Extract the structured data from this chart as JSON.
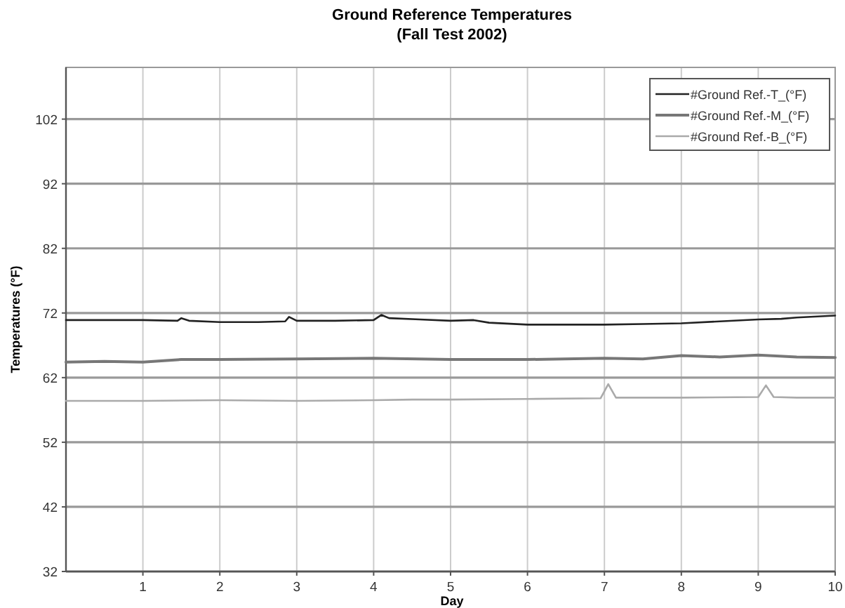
{
  "chart_data": {
    "type": "line",
    "title": "Ground Reference Temperatures",
    "subtitle": "(Fall Test 2002)",
    "xlabel": "Day",
    "ylabel": "Temperatures (°F)",
    "xlim": [
      0,
      10
    ],
    "xticks": [
      1,
      2,
      3,
      4,
      5,
      6,
      7,
      8,
      9,
      10
    ],
    "ylim": [
      32,
      110
    ],
    "yticks": [
      32,
      42,
      52,
      62,
      72,
      82,
      92,
      102
    ],
    "grid": true,
    "legend": "top right",
    "line_style": "solid",
    "series": [
      {
        "name": "#Ground Ref.-T_(°F)",
        "color": "#222222",
        "x": [
          0,
          0.5,
          1,
          1.45,
          1.5,
          1.6,
          2,
          2.5,
          2.85,
          2.9,
          3,
          3.5,
          4,
          4.1,
          4.2,
          4.6,
          5,
          5.3,
          5.5,
          6,
          6.5,
          7,
          7.5,
          8,
          8.5,
          9,
          9.3,
          9.5,
          10
        ],
        "values": [
          70.9,
          70.9,
          70.9,
          70.8,
          71.2,
          70.8,
          70.6,
          70.6,
          70.7,
          71.4,
          70.8,
          70.8,
          70.9,
          71.7,
          71.2,
          71.0,
          70.8,
          70.9,
          70.5,
          70.2,
          70.2,
          70.2,
          70.3,
          70.4,
          70.7,
          71.0,
          71.1,
          71.3,
          71.6
        ]
      },
      {
        "name": "#Ground Ref.-M_(°F)",
        "color": "#777777",
        "x": [
          0,
          0.5,
          1,
          1.5,
          2,
          3,
          4,
          5,
          6,
          7,
          7.5,
          8,
          8.5,
          9,
          9.5,
          10
        ],
        "values": [
          64.4,
          64.5,
          64.4,
          64.8,
          64.8,
          64.9,
          65.0,
          64.8,
          64.8,
          65.0,
          64.9,
          65.4,
          65.2,
          65.5,
          65.2,
          65.1
        ]
      },
      {
        "name": "#Ground Ref.-B_(°F)",
        "color": "#aaaaaa",
        "x": [
          0,
          1,
          2,
          3,
          4,
          4.5,
          5,
          6,
          6.95,
          7.05,
          7.15,
          8,
          9,
          9.1,
          9.2,
          9.5,
          10
        ],
        "values": [
          58.4,
          58.4,
          58.5,
          58.4,
          58.5,
          58.6,
          58.6,
          58.7,
          58.8,
          61.0,
          58.9,
          58.9,
          59.0,
          60.8,
          59.0,
          58.9,
          58.9
        ]
      }
    ]
  }
}
